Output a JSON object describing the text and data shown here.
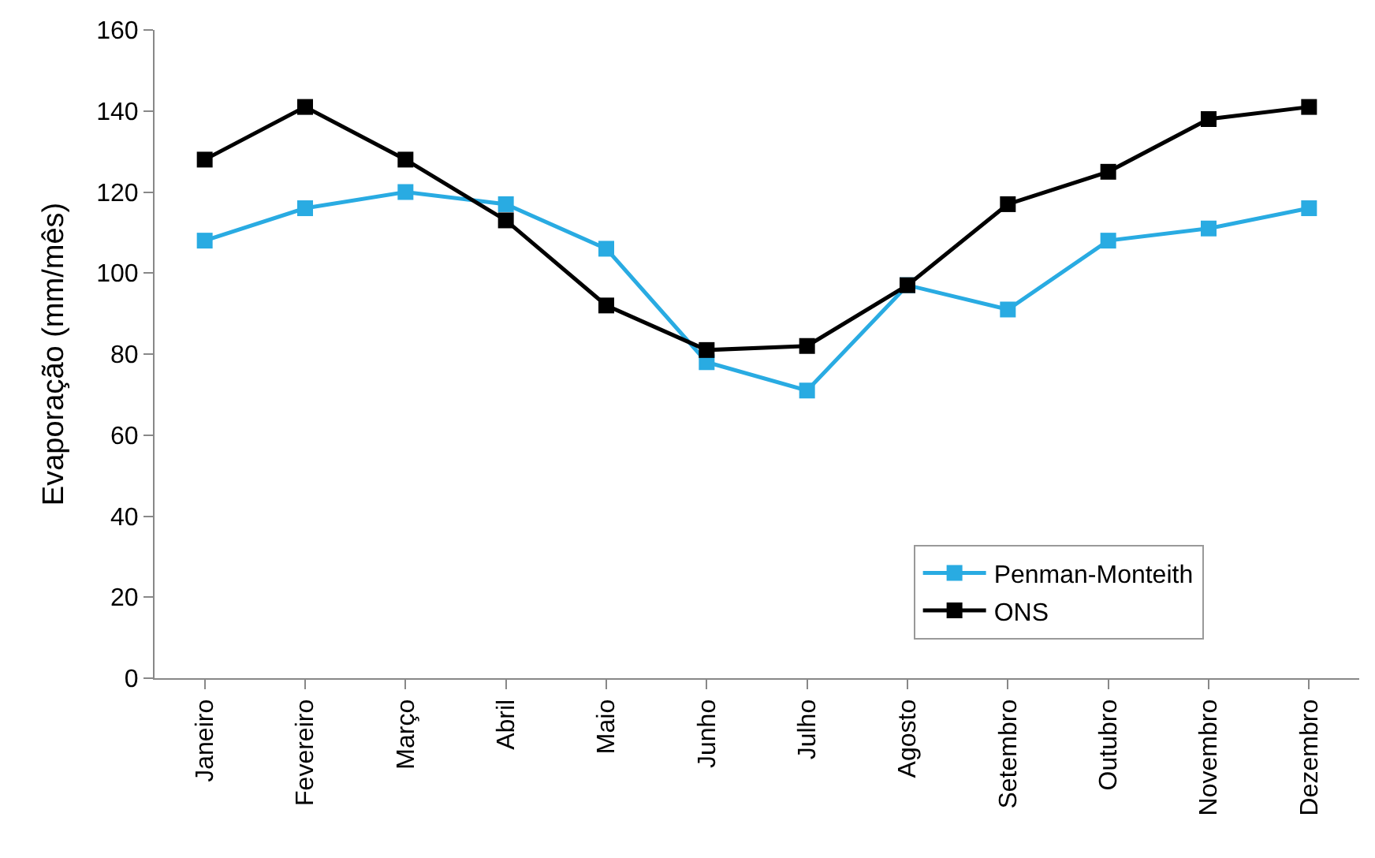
{
  "chart_data": {
    "type": "line",
    "ylabel": "Evaporação (mm/mês)",
    "categories": [
      "Janeiro",
      "Fevereiro",
      "Março",
      "Abril",
      "Maio",
      "Junho",
      "Julho",
      "Agosto",
      "Setembro",
      "Outubro",
      "Novembro",
      "Dezembro"
    ],
    "series": [
      {
        "name": "Penman-Monteith",
        "color": "#29abe2",
        "values": [
          108,
          116,
          120,
          117,
          106,
          78,
          71,
          97,
          91,
          108,
          111,
          116
        ]
      },
      {
        "name": "ONS",
        "color": "#000000",
        "values": [
          128,
          141,
          128,
          113,
          92,
          81,
          82,
          97,
          117,
          125,
          138,
          141
        ]
      }
    ],
    "ylim": [
      0,
      160
    ],
    "yticks": [
      0,
      20,
      40,
      60,
      80,
      100,
      120,
      140,
      160
    ],
    "legend": "bottom right",
    "marker": "square",
    "line_style": "solid"
  }
}
